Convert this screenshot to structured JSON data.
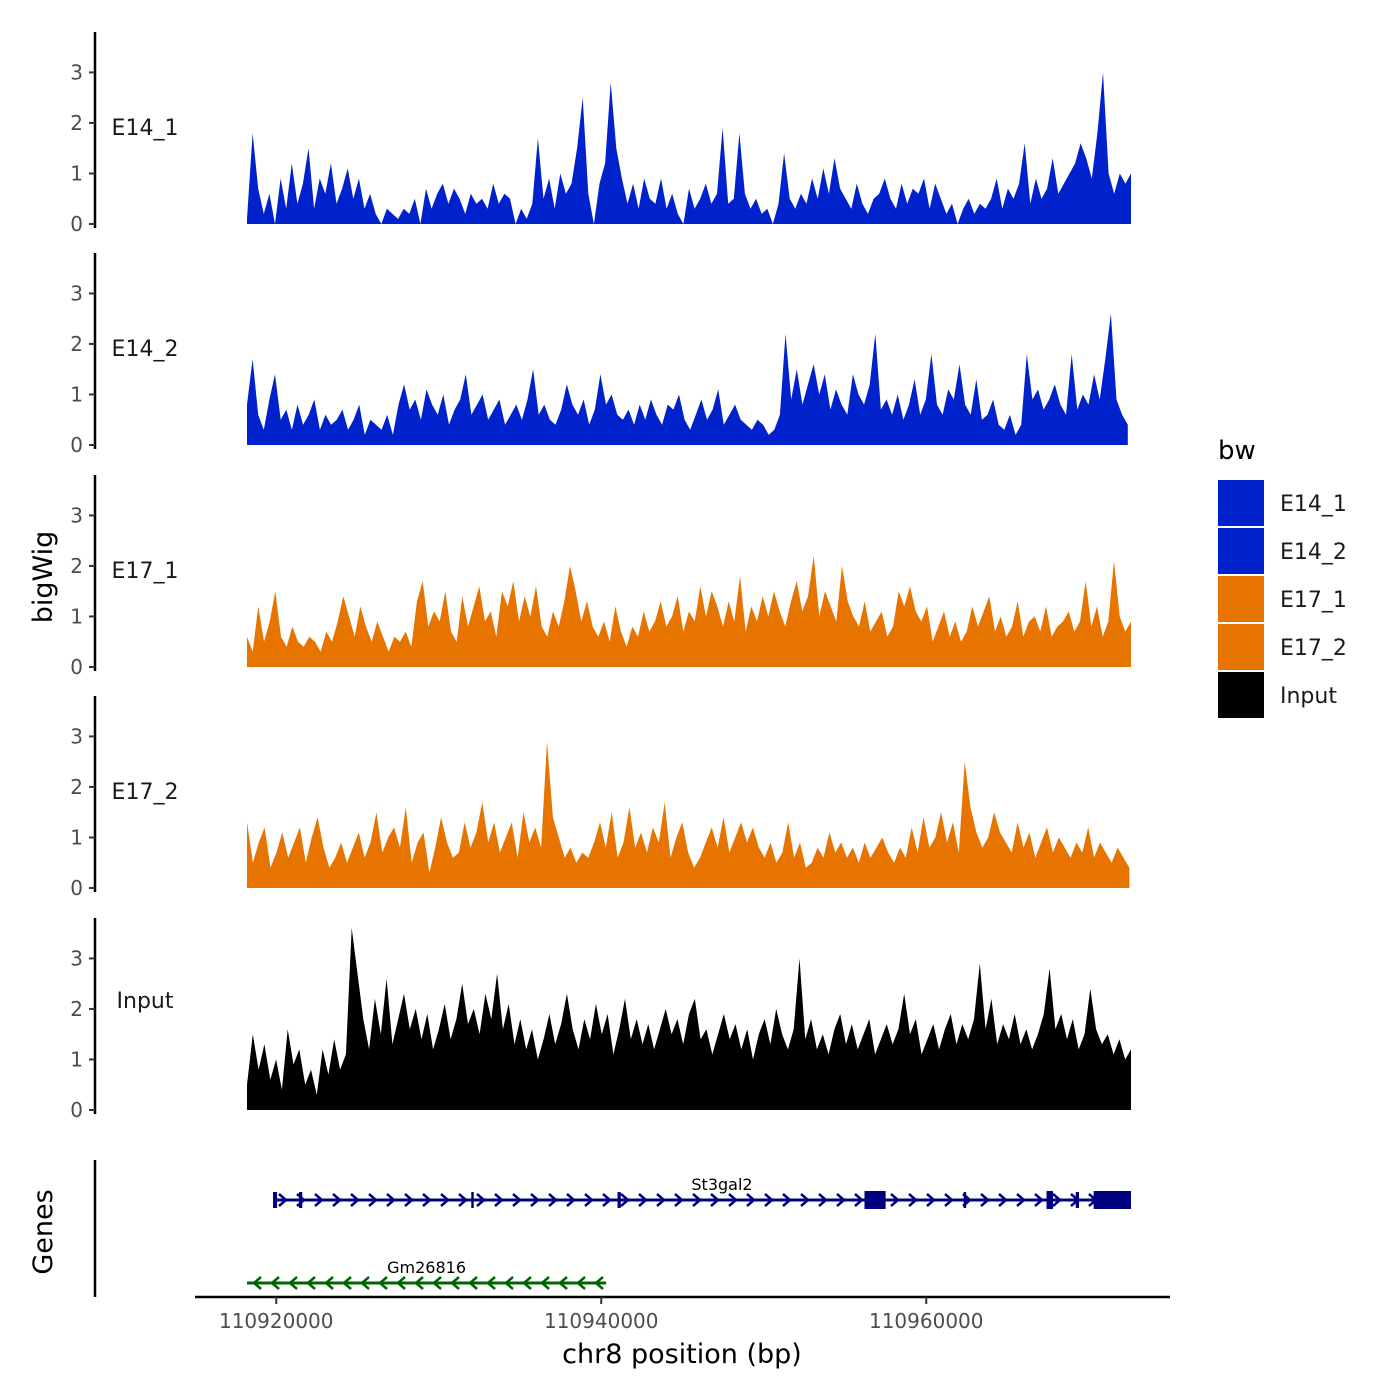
{
  "chart_data": {
    "type": "area",
    "chromosome": "chr8",
    "x_axis": {
      "title": "chr8 position (bp)",
      "range": [
        110915000,
        110975000
      ],
      "ticks": [
        110920000,
        110940000,
        110960000
      ],
      "tick_labels": [
        "110920000",
        "110940000",
        "110960000"
      ]
    },
    "y_axis": {
      "title": "bigWig",
      "range": [
        0,
        3.8
      ],
      "ticks": [
        0,
        1,
        2,
        3
      ],
      "tick_labels": [
        "0",
        "1",
        "2",
        "3"
      ]
    },
    "gene_axis_title": "Genes",
    "legend": {
      "title": "bw",
      "entries": [
        {
          "label": "E14_1",
          "color": "#0022CC"
        },
        {
          "label": "E14_2",
          "color": "#0022CC"
        },
        {
          "label": "E17_1",
          "color": "#E87400"
        },
        {
          "label": "E17_2",
          "color": "#E87400"
        },
        {
          "label": "Input",
          "color": "#000000"
        }
      ]
    },
    "series": [
      {
        "name": "E14_1",
        "color": "#0022CC",
        "x_start": 110918200,
        "x_end": 110972600,
        "values": [
          0.1,
          1.8,
          0.7,
          0.2,
          0.6,
          0,
          0.9,
          0.3,
          1.2,
          0.4,
          0.8,
          1.5,
          0.3,
          0.9,
          0.6,
          1.2,
          0.4,
          0.7,
          1.1,
          0.5,
          0.9,
          0.3,
          0.6,
          0.2,
          0,
          0.3,
          0.2,
          0.1,
          0.3,
          0.2,
          0.5,
          0,
          0.7,
          0.3,
          0.6,
          0.8,
          0.4,
          0.7,
          0.5,
          0.2,
          0.6,
          0.4,
          0.5,
          0.3,
          0.8,
          0.4,
          0.6,
          0.5,
          0,
          0.3,
          0.1,
          0.4,
          1.7,
          0.5,
          0.9,
          0.3,
          1.0,
          0.6,
          0.8,
          1.5,
          2.5,
          0.6,
          0,
          0.8,
          1.2,
          2.8,
          1.5,
          0.9,
          0.4,
          0.8,
          0.3,
          0.9,
          0.5,
          0.4,
          0.9,
          0.3,
          0.6,
          0.2,
          0,
          0.7,
          0.3,
          0.5,
          0.8,
          0.4,
          0.6,
          1.9,
          0.4,
          0.5,
          1.8,
          0.6,
          0.3,
          0.5,
          0.2,
          0.3,
          0,
          0.4,
          1.4,
          0.5,
          0.3,
          0.6,
          0.4,
          0.9,
          0.5,
          1.1,
          0.6,
          1.3,
          0.7,
          0.5,
          0.3,
          0.8,
          0.4,
          0.2,
          0.5,
          0.6,
          0.9,
          0.5,
          0.3,
          0.8,
          0.4,
          0.7,
          0.6,
          0.9,
          0.3,
          0.8,
          0.5,
          0.2,
          0.4,
          0,
          0.3,
          0.5,
          0.2,
          0.4,
          0.3,
          0.5,
          0.9,
          0.3,
          0.7,
          0.5,
          0.8,
          1.6,
          0.4,
          0.9,
          0.5,
          0.7,
          1.3,
          0.6,
          0.8,
          1.0,
          1.2,
          1.6,
          1.3,
          0.9,
          1.8,
          3.0,
          1.0,
          0.6,
          1.0,
          0.8,
          1.0
        ]
      },
      {
        "name": "E14_2",
        "color": "#0022CC",
        "x_start": 110918200,
        "x_end": 110972400,
        "values": [
          0.8,
          1.7,
          0.6,
          0.3,
          0.9,
          1.4,
          0.5,
          0.7,
          0.3,
          0.8,
          0.4,
          0.6,
          0.9,
          0.3,
          0.6,
          0.4,
          0.5,
          0.7,
          0.3,
          0.5,
          0.8,
          0.2,
          0.5,
          0.4,
          0.3,
          0.6,
          0.2,
          0.8,
          1.2,
          0.7,
          0.9,
          0.5,
          1.1,
          0.8,
          0.6,
          1.0,
          0.4,
          0.7,
          0.9,
          1.4,
          0.6,
          0.8,
          1.0,
          0.5,
          0.7,
          0.9,
          0.4,
          0.6,
          0.8,
          0.5,
          0.9,
          1.5,
          0.6,
          0.8,
          0.5,
          0.4,
          0.7,
          1.2,
          0.8,
          0.6,
          0.9,
          0.4,
          0.7,
          1.4,
          0.8,
          1.0,
          0.6,
          0.5,
          0.7,
          0.4,
          0.8,
          0.5,
          0.9,
          0.6,
          0.4,
          0.8,
          0.7,
          1.0,
          0.5,
          0.3,
          0.6,
          0.9,
          0.5,
          0.7,
          1.1,
          0.4,
          0.6,
          0.8,
          0.5,
          0.4,
          0.3,
          0.5,
          0.4,
          0.2,
          0.3,
          0.6,
          2.2,
          0.9,
          1.5,
          0.8,
          1.2,
          1.6,
          1.0,
          1.4,
          0.7,
          1.1,
          0.8,
          0.6,
          1.4,
          1.0,
          0.8,
          1.2,
          2.2,
          0.7,
          0.9,
          0.6,
          1.0,
          0.5,
          0.8,
          1.3,
          0.6,
          0.9,
          1.8,
          0.8,
          0.6,
          1.1,
          0.9,
          1.6,
          0.8,
          0.6,
          1.3,
          0.5,
          0.6,
          0.9,
          0.4,
          0.3,
          0.6,
          0.2,
          0.4,
          1.8,
          0.9,
          1.1,
          0.7,
          0.9,
          1.2,
          0.8,
          0.6,
          1.8,
          0.7,
          1.0,
          0.8,
          1.4,
          0.9,
          1.7,
          2.6,
          0.9,
          0.6,
          0.4
        ]
      },
      {
        "name": "E17_1",
        "color": "#E87400",
        "x_start": 110918200,
        "x_end": 110972600,
        "values": [
          0.6,
          0.3,
          1.2,
          0.5,
          0.9,
          1.5,
          0.6,
          0.4,
          0.8,
          0.5,
          0.4,
          0.6,
          0.5,
          0.3,
          0.7,
          0.5,
          0.9,
          1.4,
          1.0,
          0.6,
          1.2,
          0.8,
          0.5,
          0.9,
          0.6,
          0.3,
          0.6,
          0.5,
          0.7,
          0.4,
          1.3,
          1.7,
          0.8,
          1.1,
          0.9,
          1.5,
          0.7,
          0.5,
          1.4,
          0.8,
          1.2,
          1.6,
          0.9,
          1.1,
          0.6,
          1.5,
          1.2,
          1.7,
          0.9,
          1.4,
          1.0,
          1.6,
          0.8,
          0.6,
          1.1,
          0.8,
          1.3,
          2.0,
          1.5,
          0.9,
          1.3,
          0.8,
          0.6,
          0.9,
          0.5,
          1.2,
          0.7,
          0.4,
          0.8,
          0.6,
          1.1,
          0.7,
          0.9,
          1.3,
          0.8,
          1.0,
          1.4,
          0.7,
          1.1,
          0.9,
          1.6,
          1.0,
          1.5,
          1.2,
          0.8,
          1.3,
          0.9,
          1.8,
          0.7,
          1.2,
          0.9,
          1.4,
          1.0,
          1.5,
          1.1,
          0.8,
          1.3,
          1.7,
          1.1,
          1.4,
          2.2,
          1.0,
          1.5,
          1.2,
          0.9,
          2.0,
          1.3,
          1.0,
          0.8,
          1.3,
          0.7,
          0.9,
          1.1,
          0.6,
          0.8,
          1.5,
          1.2,
          1.6,
          1.1,
          0.9,
          1.2,
          0.5,
          0.8,
          1.1,
          0.6,
          0.9,
          0.5,
          0.7,
          1.2,
          0.8,
          1.1,
          1.4,
          0.7,
          1.0,
          0.6,
          0.8,
          1.3,
          0.6,
          0.9,
          1.0,
          0.7,
          1.2,
          0.6,
          0.8,
          0.9,
          1.1,
          0.7,
          0.9,
          1.7,
          0.8,
          1.2,
          0.6,
          0.9,
          2.1,
          1.0,
          0.7,
          0.9
        ]
      },
      {
        "name": "E17_2",
        "color": "#E87400",
        "x_start": 110918200,
        "x_end": 110972500,
        "values": [
          1.3,
          0.5,
          0.9,
          1.2,
          0.4,
          0.7,
          1.1,
          0.6,
          0.9,
          1.2,
          0.5,
          1.0,
          1.4,
          0.8,
          0.4,
          0.6,
          0.9,
          0.5,
          0.8,
          1.1,
          0.6,
          0.9,
          1.5,
          0.7,
          1.0,
          1.2,
          0.8,
          1.6,
          0.5,
          0.9,
          1.1,
          0.3,
          0.8,
          1.4,
          0.9,
          0.6,
          0.7,
          1.3,
          0.8,
          1.1,
          1.7,
          0.9,
          1.3,
          0.7,
          1.0,
          1.3,
          0.6,
          1.5,
          0.9,
          1.2,
          0.8,
          2.9,
          1.4,
          1.0,
          0.6,
          0.8,
          0.5,
          0.7,
          0.6,
          0.9,
          1.3,
          0.8,
          1.5,
          0.6,
          0.9,
          1.6,
          0.8,
          1.1,
          0.7,
          1.2,
          0.9,
          1.7,
          0.6,
          1.0,
          1.3,
          0.7,
          0.4,
          0.6,
          0.9,
          1.2,
          0.8,
          1.4,
          0.7,
          1.0,
          1.3,
          0.9,
          1.2,
          0.8,
          0.6,
          0.9,
          0.5,
          0.7,
          1.3,
          0.6,
          0.9,
          0.4,
          0.5,
          0.8,
          0.6,
          1.1,
          0.7,
          0.9,
          0.6,
          0.8,
          0.5,
          0.9,
          0.6,
          0.8,
          1.0,
          0.7,
          0.5,
          0.8,
          0.6,
          1.2,
          0.7,
          1.4,
          0.8,
          1.0,
          1.5,
          0.9,
          1.3,
          0.7,
          2.5,
          1.6,
          1.1,
          0.8,
          1.0,
          1.5,
          1.1,
          0.9,
          0.7,
          1.3,
          0.8,
          1.1,
          0.6,
          0.9,
          1.2,
          0.7,
          1.0,
          0.8,
          0.6,
          0.9,
          0.7,
          1.2,
          0.6,
          0.9,
          0.7,
          0.5,
          0.8,
          0.6,
          0.4
        ]
      },
      {
        "name": "Input",
        "color": "#000000",
        "x_start": 110918200,
        "x_end": 110972600,
        "values": [
          0.5,
          1.5,
          0.8,
          1.3,
          0.6,
          1.0,
          0.4,
          1.6,
          0.9,
          1.2,
          0.5,
          0.8,
          0.3,
          1.2,
          0.7,
          1.4,
          0.8,
          1.1,
          3.6,
          2.7,
          1.8,
          1.2,
          2.2,
          1.5,
          2.6,
          1.3,
          1.8,
          2.3,
          1.6,
          2.0,
          1.4,
          1.9,
          1.2,
          1.6,
          2.1,
          1.4,
          1.8,
          2.5,
          1.7,
          2.0,
          1.5,
          2.3,
          1.8,
          2.7,
          1.6,
          2.1,
          1.3,
          1.8,
          1.2,
          1.6,
          1.0,
          1.4,
          1.9,
          1.3,
          1.7,
          2.3,
          1.6,
          1.2,
          1.8,
          1.4,
          2.1,
          1.5,
          1.9,
          1.1,
          1.6,
          2.2,
          1.4,
          1.8,
          1.3,
          1.7,
          1.2,
          1.6,
          2.0,
          1.5,
          1.8,
          1.3,
          1.9,
          2.2,
          1.4,
          1.6,
          1.1,
          1.5,
          1.9,
          1.4,
          1.7,
          1.2,
          1.6,
          1.0,
          1.5,
          1.8,
          1.3,
          2.0,
          1.5,
          1.2,
          1.6,
          3.0,
          1.4,
          1.8,
          1.2,
          1.5,
          1.1,
          1.6,
          1.9,
          1.3,
          1.7,
          1.2,
          1.5,
          1.8,
          1.1,
          1.4,
          1.7,
          1.3,
          1.6,
          2.3,
          1.5,
          1.8,
          1.1,
          1.4,
          1.7,
          1.2,
          1.6,
          1.9,
          1.3,
          1.7,
          1.4,
          1.8,
          2.9,
          1.6,
          2.2,
          1.3,
          1.7,
          1.4,
          1.9,
          1.3,
          1.6,
          1.2,
          1.5,
          1.9,
          2.8,
          1.6,
          1.9,
          1.4,
          1.8,
          1.2,
          1.5,
          2.4,
          1.6,
          1.3,
          1.5,
          1.1,
          1.4,
          1.0,
          1.2
        ]
      }
    ],
    "genes": [
      {
        "name": "St3gal2",
        "color": "#000080",
        "strand": "+",
        "start": 110919800,
        "end": 110972600,
        "exons": [
          [
            110919800,
            110920050
          ],
          [
            110921400,
            110921600
          ],
          [
            110932000,
            110932150
          ],
          [
            110941000,
            110941200
          ],
          [
            110956200,
            110957500
          ],
          [
            110962300,
            110962450
          ],
          [
            110967400,
            110967800
          ],
          [
            110969200,
            110969400
          ],
          [
            110970300,
            110972600
          ]
        ]
      },
      {
        "name": "Gm26816",
        "color": "#006400",
        "strand": "-",
        "start": 110918200,
        "end": 110940300,
        "exons": []
      }
    ]
  }
}
